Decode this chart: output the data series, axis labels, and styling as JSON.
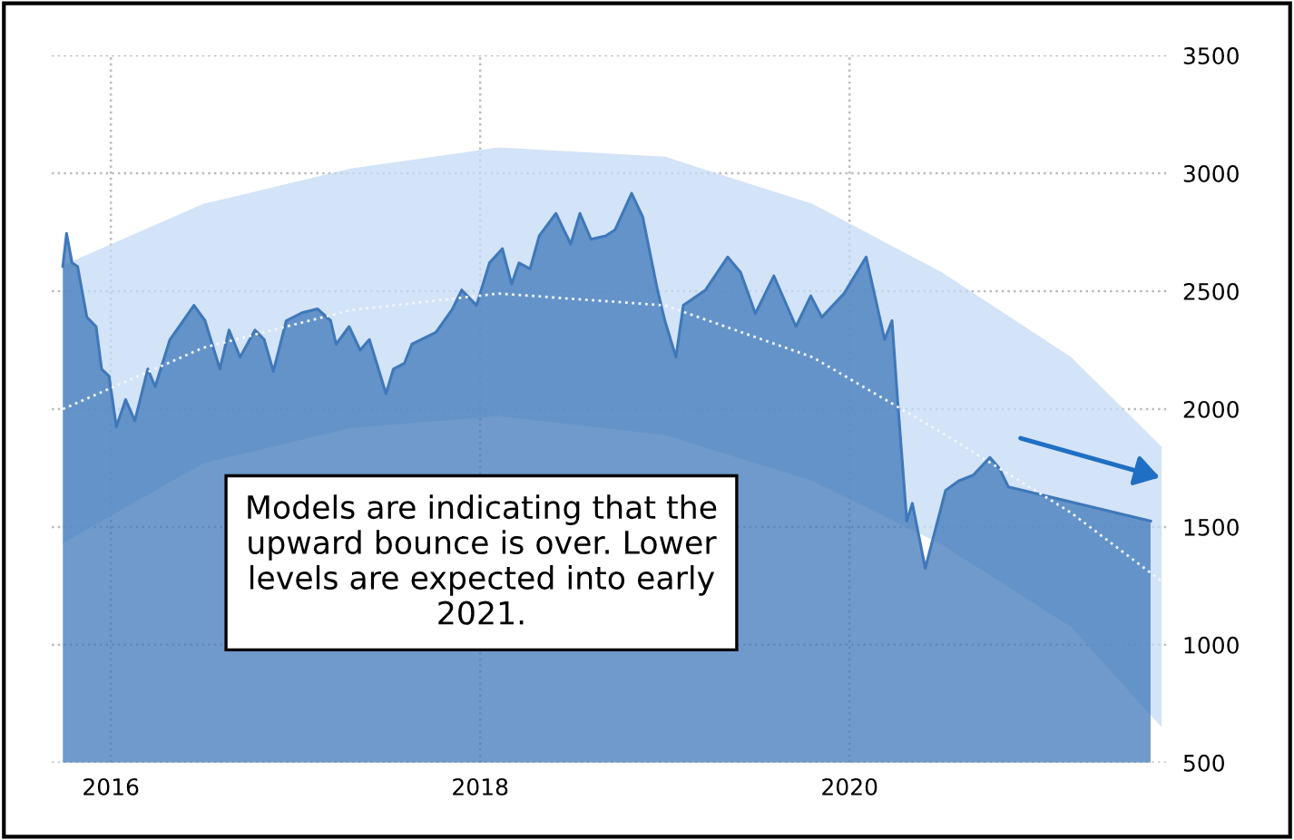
{
  "chart_data": {
    "type": "area",
    "series": [
      {
        "color": "#3f78b9",
        "x": [
          2015.74,
          2015.76,
          2015.79,
          2015.82,
          2015.87,
          2015.92,
          2015.95,
          2015.99,
          2016.03,
          2016.08,
          2016.13,
          2016.2,
          2016.24,
          2016.32,
          2016.37,
          2016.45,
          2016.51,
          2016.59,
          2016.64,
          2016.7,
          2016.78,
          2016.83,
          2016.88,
          2016.95,
          2017.04,
          2017.12,
          2017.19,
          2017.22,
          2017.29,
          2017.35,
          2017.4,
          2017.49,
          2017.53,
          2017.59,
          2017.63,
          2017.76,
          2017.85,
          2017.9,
          2017.98,
          2018.05,
          2018.12,
          2018.17,
          2018.21,
          2018.27,
          2018.32,
          2018.41,
          2018.49,
          2018.54,
          2018.6,
          2018.68,
          2018.73,
          2018.82,
          2018.88,
          2018.96,
          2019.0,
          2019.06,
          2019.1,
          2019.22,
          2019.34,
          2019.41,
          2019.49,
          2019.59,
          2019.71,
          2019.79,
          2019.85,
          2019.97,
          2020.09,
          2020.19,
          2020.23,
          2020.26,
          2020.31,
          2020.34,
          2020.41,
          2020.52,
          2020.59,
          2020.67,
          2020.76,
          2020.81,
          2020.86,
          2021.63
        ],
        "values": [
          2605,
          2745,
          2620,
          2605,
          2390,
          2350,
          2170,
          2140,
          1925,
          2040,
          1950,
          2170,
          2095,
          2295,
          2350,
          2440,
          2375,
          2170,
          2335,
          2220,
          2335,
          2295,
          2160,
          2375,
          2410,
          2425,
          2375,
          2275,
          2350,
          2250,
          2295,
          2065,
          2170,
          2195,
          2275,
          2325,
          2425,
          2505,
          2440,
          2620,
          2680,
          2530,
          2620,
          2595,
          2735,
          2830,
          2700,
          2830,
          2720,
          2735,
          2760,
          2915,
          2815,
          2505,
          2375,
          2220,
          2440,
          2505,
          2645,
          2580,
          2405,
          2565,
          2350,
          2480,
          2390,
          2490,
          2645,
          2295,
          2375,
          2040,
          1525,
          1600,
          1325,
          1655,
          1695,
          1720,
          1795,
          1750,
          1670,
          1525
        ]
      },
      {
        "type": "line",
        "color": "#f2f6fc",
        "line_style": "dotted",
        "x": [
          2015.74,
          2016.5,
          2017.3,
          2018.1,
          2019.0,
          2019.8,
          2020.5,
          2021.2,
          2021.69
        ],
        "values": [
          2000,
          2260,
          2420,
          2490,
          2440,
          2220,
          1900,
          1560,
          1270
        ],
        "lower": [
          1430,
          1770,
          1920,
          1970,
          1890,
          1695,
          1425,
          1075,
          650
        ],
        "upper": [
          2610,
          2870,
          3020,
          3110,
          3070,
          2870,
          2580,
          2220,
          1840
        ]
      }
    ],
    "xlim": [
      2015.68,
      2021.72
    ],
    "xticks": [
      2016,
      2018,
      2020
    ],
    "ylim": [
      500,
      3500
    ],
    "yticks": [
      500,
      1000,
      1500,
      2000,
      2500,
      3000,
      3500
    ],
    "grid": true,
    "annotations": [
      "Models are indicating that the upward bounce is over. Lower levels are expected into early 2021."
    ]
  }
}
